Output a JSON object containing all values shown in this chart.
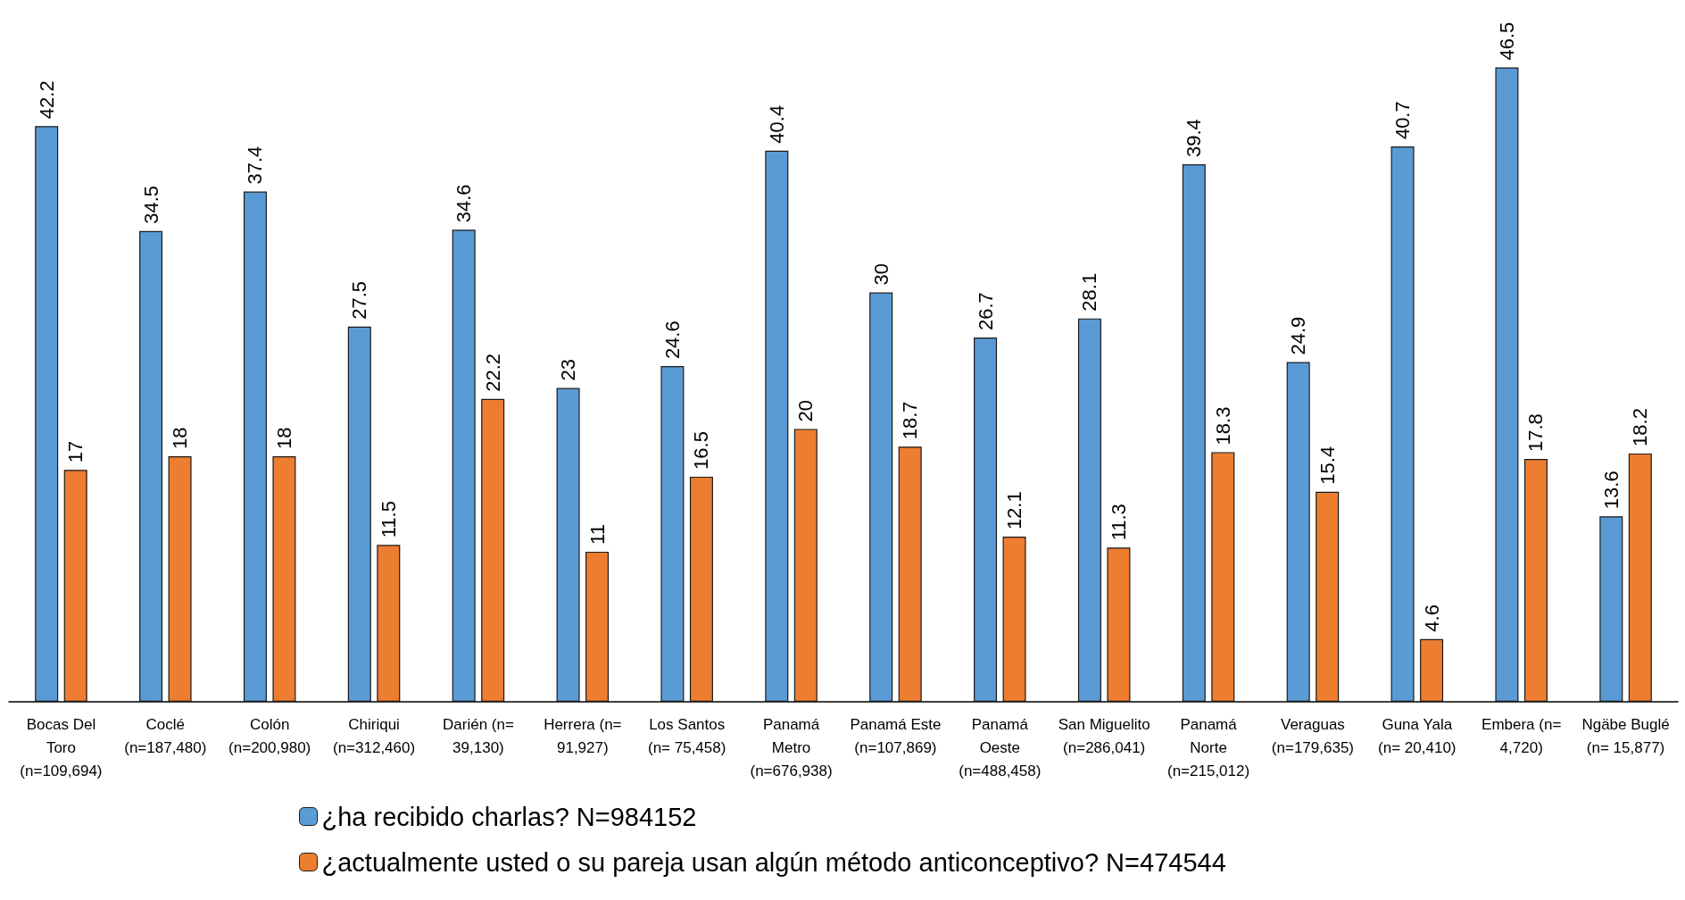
{
  "chart_data": {
    "type": "bar",
    "categories": [
      "Bocas Del Toro (n=109,694)",
      "Coclé (n=187,480)",
      "Colón (n=200,980)",
      "Chiriqui (n=312,460)",
      "Darién (n= 39,130)",
      "Herrera (n= 91,927)",
      "Los Santos (n= 75,458)",
      "Panamá Metro (n=676,938)",
      "Panamá Este (n=107,869)",
      "Panamá Oeste (n=488,458)",
      "San Miguelito (n=286,041)",
      "Panamá Norte (n=215,012)",
      "Veraguas (n=179,635)",
      "Guna Yala (n= 20,410)",
      "Embera (n= 4,720)",
      "Ngäbe Buglé (n= 15,877)"
    ],
    "series": [
      {
        "name": "¿ha recibido charlas? N=984152",
        "color": "#5b9bd5",
        "values": [
          42.2,
          34.5,
          37.4,
          27.5,
          34.6,
          23,
          24.6,
          40.4,
          30,
          26.7,
          28.1,
          39.4,
          24.9,
          40.7,
          46.5,
          13.6
        ]
      },
      {
        "name": "¿actualmente usted o su pareja usan algún método anticonceptivo? N=474544",
        "color": "#ed7d31",
        "values": [
          17,
          18,
          18,
          11.5,
          22.2,
          11,
          16.5,
          20,
          18.7,
          12.1,
          11.3,
          18.3,
          15.4,
          4.6,
          17.8,
          18.2
        ]
      }
    ],
    "data_labels": true,
    "legend": "bottom"
  }
}
